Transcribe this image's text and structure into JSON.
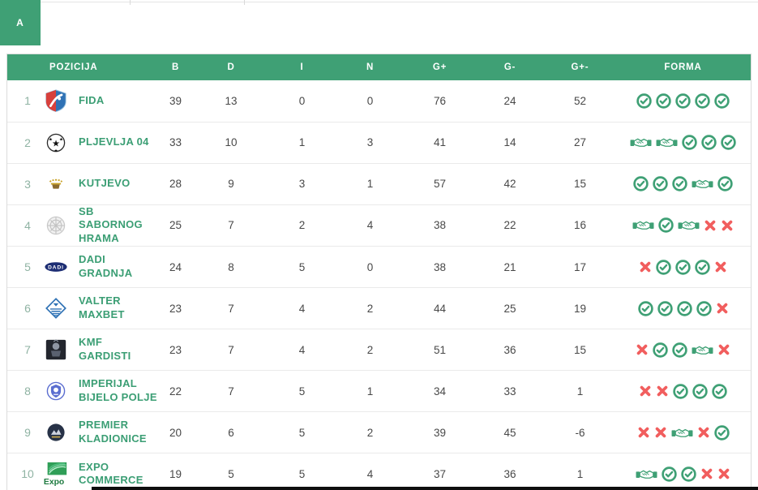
{
  "tab": {
    "label": "A"
  },
  "columns": [
    "POZICIJA",
    "B",
    "D",
    "I",
    "N",
    "G+",
    "G-",
    "G+-",
    "FORMA"
  ],
  "rows": [
    {
      "pos": "1",
      "name": "FIDA",
      "b": "39",
      "d": "13",
      "i": "0",
      "n": "0",
      "gplus": "76",
      "gminus": "24",
      "gdiff": "52",
      "forma": [
        "W",
        "W",
        "W",
        "W",
        "W"
      ]
    },
    {
      "pos": "2",
      "name": "PLJEVLJA 04",
      "b": "33",
      "d": "10",
      "i": "1",
      "n": "3",
      "gplus": "41",
      "gminus": "14",
      "gdiff": "27",
      "forma": [
        "D",
        "D",
        "W",
        "W",
        "W"
      ]
    },
    {
      "pos": "3",
      "name": "KUTJEVO",
      "b": "28",
      "d": "9",
      "i": "3",
      "n": "1",
      "gplus": "57",
      "gminus": "42",
      "gdiff": "15",
      "forma": [
        "W",
        "W",
        "W",
        "D",
        "W"
      ]
    },
    {
      "pos": "4",
      "name": "SB SABORNOG HRAMA",
      "b": "25",
      "d": "7",
      "i": "2",
      "n": "4",
      "gplus": "38",
      "gminus": "22",
      "gdiff": "16",
      "forma": [
        "D",
        "W",
        "D",
        "L",
        "L"
      ]
    },
    {
      "pos": "5",
      "name": "DADI GRADNJA",
      "b": "24",
      "d": "8",
      "i": "5",
      "n": "0",
      "gplus": "38",
      "gminus": "21",
      "gdiff": "17",
      "forma": [
        "L",
        "W",
        "W",
        "W",
        "L"
      ]
    },
    {
      "pos": "6",
      "name": "VALTER MAXBET",
      "b": "23",
      "d": "7",
      "i": "4",
      "n": "2",
      "gplus": "44",
      "gminus": "25",
      "gdiff": "19",
      "forma": [
        "W",
        "W",
        "W",
        "W",
        "L"
      ]
    },
    {
      "pos": "7",
      "name": "KMF GARDISTI",
      "b": "23",
      "d": "7",
      "i": "4",
      "n": "2",
      "gplus": "51",
      "gminus": "36",
      "gdiff": "15",
      "forma": [
        "L",
        "W",
        "W",
        "D",
        "L"
      ]
    },
    {
      "pos": "8",
      "name": "IMPERIJAL BIJELO POLJE",
      "b": "22",
      "d": "7",
      "i": "5",
      "n": "1",
      "gplus": "34",
      "gminus": "33",
      "gdiff": "1",
      "forma": [
        "L",
        "L",
        "W",
        "W",
        "W"
      ]
    },
    {
      "pos": "9",
      "name": "PREMIER KLADIONICE",
      "b": "20",
      "d": "6",
      "i": "5",
      "n": "2",
      "gplus": "39",
      "gminus": "45",
      "gdiff": "-6",
      "forma": [
        "L",
        "L",
        "D",
        "L",
        "W"
      ]
    },
    {
      "pos": "10",
      "name": "EXPO COMMERCE",
      "b": "19",
      "d": "5",
      "i": "5",
      "n": "4",
      "gplus": "37",
      "gminus": "36",
      "gdiff": "1",
      "forma": [
        "D",
        "W",
        "W",
        "L",
        "L"
      ]
    }
  ],
  "form_icon_legend": {
    "W": "check-circle-icon",
    "D": "handshake-icon",
    "L": "x-mark-icon"
  },
  "colors": {
    "header_green": "#3fa075",
    "team_green": "#3b9e74",
    "position_muted": "#8fb3a3",
    "stat_text": "#484848",
    "win_green": "#3fa075",
    "loss_red": "#f15e5e",
    "row_border": "#eaeaea"
  }
}
